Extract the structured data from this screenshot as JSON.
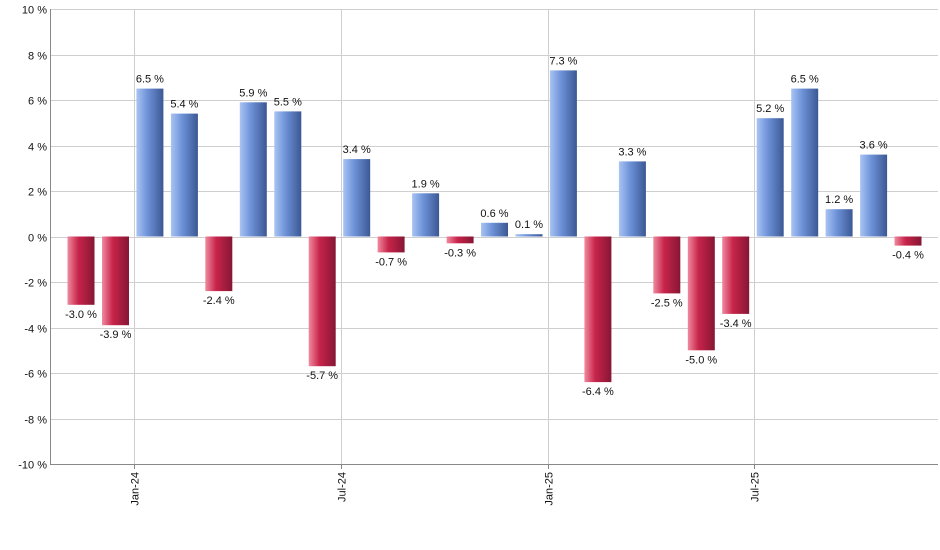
{
  "chart_data": {
    "type": "bar",
    "title": "",
    "xlabel": "",
    "ylabel": "",
    "ylim": [
      -10,
      10
    ],
    "y_ticks": [
      -10,
      -8,
      -6,
      -4,
      -2,
      0,
      2,
      4,
      6,
      8,
      10
    ],
    "y_tick_suffix": " %",
    "grid": true,
    "x": [
      "2023-11",
      "2023-12",
      "2024-01",
      "2024-02",
      "2024-03",
      "2024-04",
      "2024-05",
      "2024-06",
      "2024-07",
      "2024-08",
      "2024-09",
      "2024-10",
      "2024-11",
      "2024-12",
      "2025-01",
      "2025-02",
      "2025-03",
      "2025-04",
      "2025-05",
      "2025-06",
      "2025-07",
      "2025-08",
      "2025-09",
      "2025-10",
      "2025-11"
    ],
    "values": [
      -3.0,
      -3.9,
      6.5,
      5.4,
      -2.4,
      5.9,
      5.5,
      -5.7,
      3.4,
      -0.7,
      1.9,
      -0.3,
      0.6,
      0.1,
      7.3,
      -6.4,
      3.3,
      -2.5,
      -5.0,
      -3.4,
      5.2,
      6.5,
      1.2,
      3.6,
      -0.4
    ],
    "data_labels": [
      "-3.0 %",
      "-3.9 %",
      "6.5 %",
      "5.4 %",
      "-2.4 %",
      "5.9 %",
      "5.5 %",
      "-5.7 %",
      "3.4 %",
      "-0.7 %",
      "1.9 %",
      "-0.3 %",
      "0.6 %",
      "0.1 %",
      "7.3 %",
      "-6.4 %",
      "3.3 %",
      "-2.5 %",
      "-5.0 %",
      "-3.4 %",
      "5.2 %",
      "6.5 %",
      "1.2 %",
      "3.6 %",
      "-0.4 %"
    ],
    "x_ticks": [
      {
        "label": "Jan-24",
        "at": "2024-01-01"
      },
      {
        "label": "Jul-24",
        "at": "2024-07-01"
      },
      {
        "label": "Jan-25",
        "at": "2025-01-01"
      },
      {
        "label": "Jul-25",
        "at": "2025-07-01"
      }
    ],
    "colors": {
      "positive_light": "#a9c4f3",
      "positive_mid": "#6f93d9",
      "positive_dark": "#3b5894",
      "negative_light": "#f08a9f",
      "negative_mid": "#c8244a",
      "negative_dark": "#861634",
      "grid": "#cfcfcf",
      "axis": "#888888"
    }
  }
}
